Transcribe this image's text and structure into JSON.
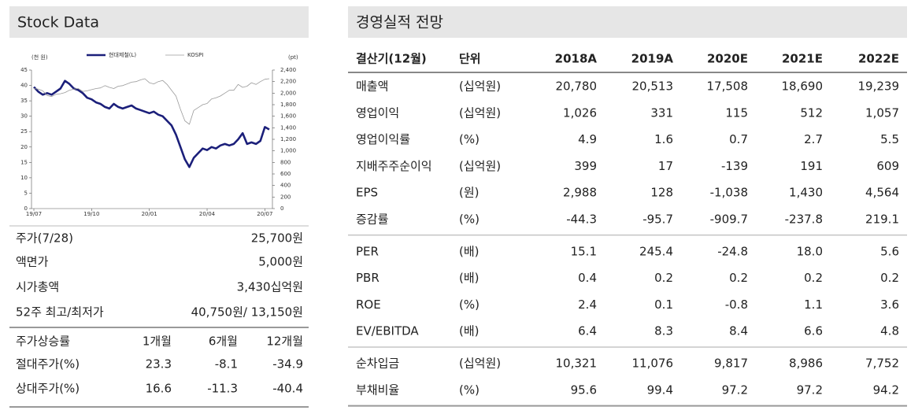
{
  "stock_panel": {
    "title": "Stock Data",
    "rows": [
      [
        "주가(7/28)",
        "25,700원"
      ],
      [
        "액면가",
        "5,000원"
      ],
      [
        "시가총액",
        "3,430십억원"
      ],
      [
        "52주 최고/최저가",
        "40,750원/ 13,150원"
      ]
    ],
    "returns": {
      "header": [
        "주가상승률",
        "1개월",
        "6개월",
        "12개월"
      ],
      "rows": [
        [
          "절대주가(%)",
          "23.3",
          "-8.1",
          "-34.9"
        ],
        [
          "상대주가(%)",
          "16.6",
          "-11.3",
          "-40.4"
        ]
      ]
    }
  },
  "chart_data": {
    "type": "line",
    "y_unit": "(천 원)",
    "y2_unit": "(pt)",
    "categories": [
      "19/07",
      null,
      null,
      null,
      null,
      null,
      null,
      null,
      null,
      null,
      null,
      null,
      null,
      "19/10",
      null,
      null,
      null,
      null,
      null,
      null,
      null,
      null,
      null,
      null,
      null,
      null,
      "20/01",
      null,
      null,
      null,
      null,
      null,
      null,
      null,
      null,
      null,
      null,
      null,
      null,
      "20/04",
      null,
      null,
      null,
      null,
      null,
      null,
      null,
      null,
      null,
      null,
      null,
      null,
      "20/07",
      null
    ],
    "ylim": [
      0,
      45
    ],
    "yticks": [
      0,
      5,
      10,
      15,
      20,
      25,
      30,
      35,
      40,
      45
    ],
    "y2lim": [
      0,
      2400
    ],
    "y2ticks": [
      0,
      200,
      400,
      600,
      800,
      {
        "value": 1000,
        "label": "1,000"
      },
      {
        "value": 1200,
        "label": "1,200"
      },
      {
        "value": 1400,
        "label": "1,400"
      },
      {
        "value": 1600,
        "label": "1,600"
      },
      {
        "value": 1800,
        "label": "1,800"
      },
      {
        "value": 2000,
        "label": "2,000"
      },
      {
        "value": 2200,
        "label": "2,200"
      },
      {
        "value": 2400,
        "label": "2,400"
      }
    ],
    "series": [
      {
        "name": "현대제철(L)",
        "color": "#1b1f7a",
        "values": [
          39.5,
          38,
          37,
          37.5,
          37,
          38,
          39,
          41.5,
          40.5,
          39,
          38.5,
          37.5,
          36,
          35.5,
          34.5,
          34,
          33,
          32.5,
          34,
          33,
          32.5,
          33,
          33.5,
          32.5,
          32,
          31.5,
          31,
          31.5,
          30.5,
          30,
          28.5,
          27,
          24,
          20,
          16,
          13.5,
          16.5,
          18,
          19.5,
          19,
          20,
          19.5,
          20.5,
          21,
          20.5,
          21,
          22.5,
          24.5,
          21,
          21.5,
          21,
          22,
          26.5,
          25.7
        ]
      },
      {
        "name": "KOSPI",
        "color": "#9a9a9a",
        "axis": "y2",
        "values": [
          2080,
          2070,
          2040,
          1960,
          1940,
          1980,
          1990,
          2010,
          2050,
          2070,
          2080,
          2030,
          2040,
          2060,
          2080,
          2090,
          2130,
          2100,
          2080,
          2120,
          2130,
          2160,
          2190,
          2200,
          2230,
          2250,
          2180,
          2160,
          2200,
          2220,
          2150,
          2050,
          1950,
          1720,
          1520,
          1460,
          1700,
          1750,
          1800,
          1820,
          1900,
          1920,
          1950,
          2000,
          2050,
          2050,
          2150,
          2100,
          2120,
          2180,
          2150,
          2200,
          2240,
          2250
        ]
      }
    ]
  },
  "forecast": {
    "title": "경영실적 전망",
    "header": [
      "결산기(12월)",
      "단위",
      "2018A",
      "2019A",
      "2020E",
      "2021E",
      "2022E"
    ],
    "groups": [
      [
        [
          "매출액",
          "(십억원)",
          "20,780",
          "20,513",
          "17,508",
          "18,690",
          "19,239"
        ],
        [
          "영업이익",
          "(십억원)",
          "1,026",
          "331",
          "115",
          "512",
          "1,057"
        ],
        [
          "영업이익률",
          "(%)",
          "4.9",
          "1.6",
          "0.7",
          "2.7",
          "5.5"
        ],
        [
          "지배주주순이익",
          "(십억원)",
          "399",
          "17",
          "-139",
          "191",
          "609"
        ],
        [
          "EPS",
          "(원)",
          "2,988",
          "128",
          "-1,038",
          "1,430",
          "4,564"
        ],
        [
          "증감률",
          "(%)",
          "-44.3",
          "-95.7",
          "-909.7",
          "-237.8",
          "219.1"
        ]
      ],
      [
        [
          "PER",
          "(배)",
          "15.1",
          "245.4",
          "-24.8",
          "18.0",
          "5.6"
        ],
        [
          "PBR",
          "(배)",
          "0.4",
          "0.2",
          "0.2",
          "0.2",
          "0.2"
        ],
        [
          "ROE",
          "(%)",
          "2.4",
          "0.1",
          "-0.8",
          "1.1",
          "3.6"
        ],
        [
          "EV/EBITDA",
          "(배)",
          "6.4",
          "8.3",
          "8.4",
          "6.6",
          "4.8"
        ]
      ],
      [
        [
          "순차입금",
          "(십억원)",
          "10,321",
          "11,076",
          "9,817",
          "8,986",
          "7,752"
        ],
        [
          "부채비율",
          "(%)",
          "95.6",
          "99.4",
          "97.2",
          "97.2",
          "94.2"
        ]
      ]
    ]
  }
}
